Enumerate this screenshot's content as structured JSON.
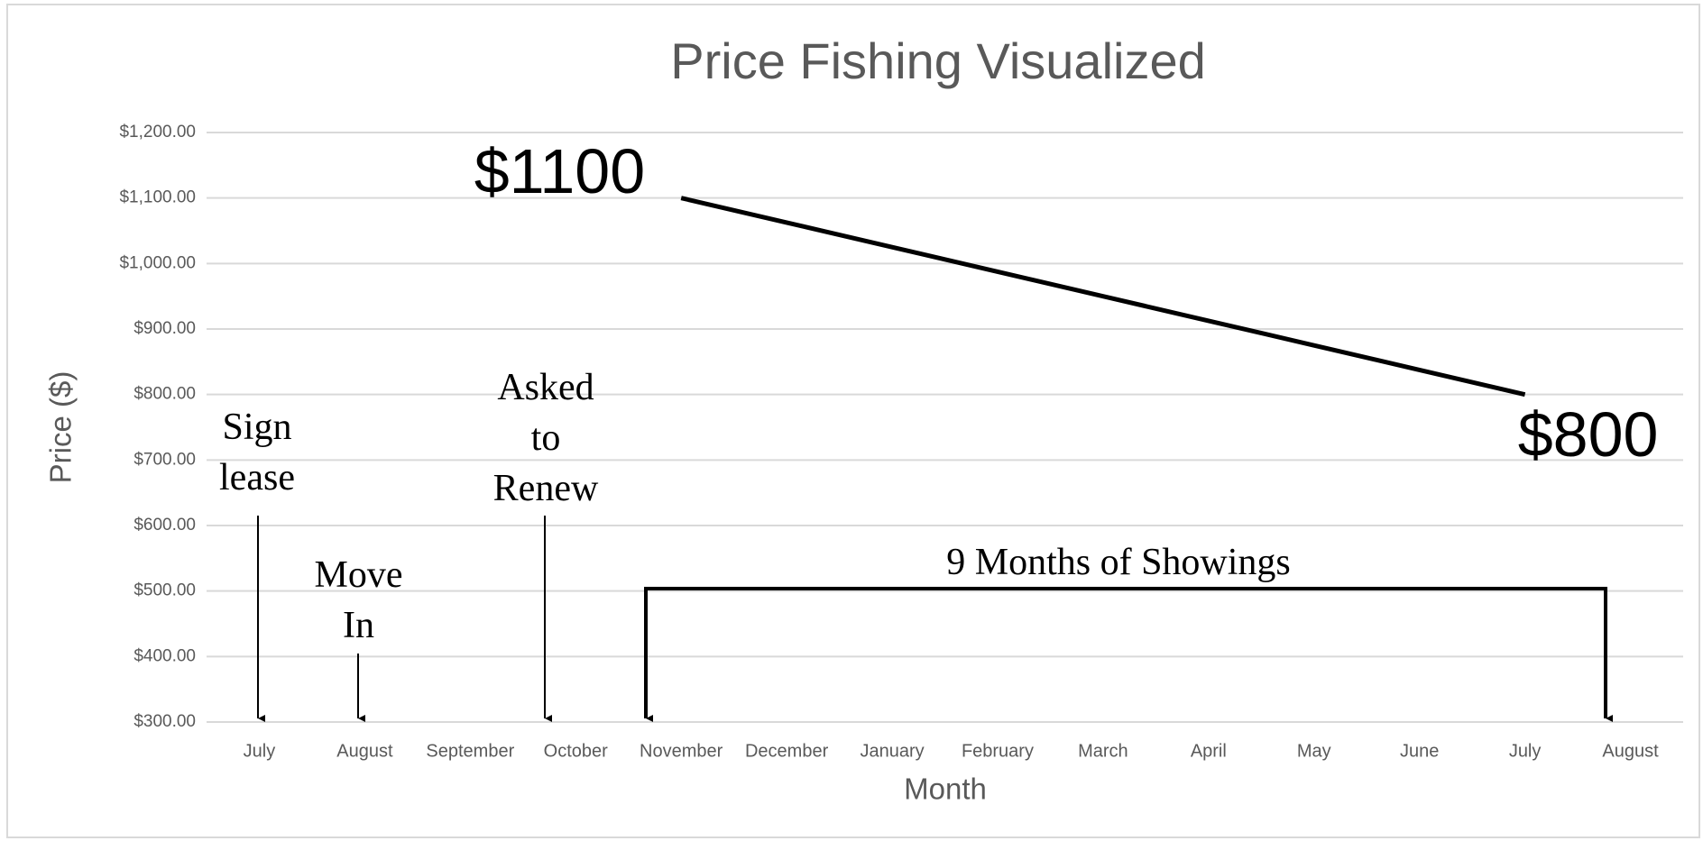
{
  "chart_data": {
    "type": "line",
    "title": "Price Fishing Visualized",
    "x_label": "Month",
    "y_label": "Price ($)",
    "categories": [
      "July",
      "August",
      "September",
      "October",
      "November",
      "December",
      "January",
      "February",
      "March",
      "April",
      "May",
      "June",
      "July",
      "August"
    ],
    "series": [
      {
        "name": "Price",
        "color": "#000000",
        "values": [
          null,
          null,
          null,
          null,
          1100,
          1062.5,
          1025,
          987.5,
          950,
          912.5,
          875,
          837.5,
          800,
          null
        ],
        "value_labels": [
          null,
          null,
          null,
          null,
          "$1100",
          null,
          null,
          null,
          null,
          null,
          null,
          null,
          "$800",
          null
        ]
      }
    ],
    "ylim": [
      300,
      1200
    ],
    "yticks": [
      {
        "value": 300,
        "label": "$300.00"
      },
      {
        "value": 400,
        "label": "$400.00"
      },
      {
        "value": 500,
        "label": "$500.00"
      },
      {
        "value": 600,
        "label": "$600.00"
      },
      {
        "value": 700,
        "label": "$700.00"
      },
      {
        "value": 800,
        "label": "$800.00"
      },
      {
        "value": 900,
        "label": "$900.00"
      },
      {
        "value": 1000,
        "label": "$1,000.00"
      },
      {
        "value": 1100,
        "label": "$1,100.00"
      },
      {
        "value": 1200,
        "label": "$1,200.00"
      }
    ],
    "grid": true,
    "annotations": [
      "Sign lease",
      "Move In",
      "Asked to Renew",
      "9 Months of Showings"
    ]
  }
}
